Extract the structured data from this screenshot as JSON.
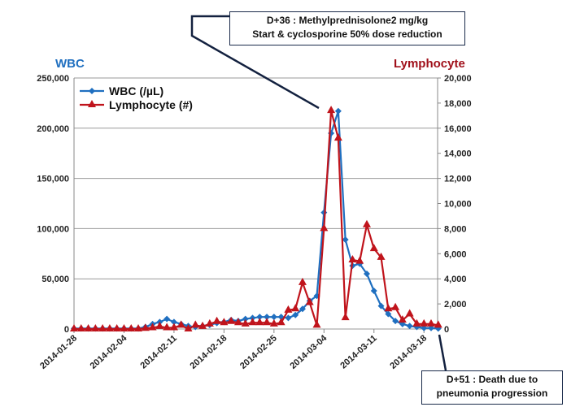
{
  "chart_data": {
    "type": "line",
    "title": "",
    "ylabel_left": "WBC",
    "ylabel_right": "Lymphocyte",
    "ylim_left": [
      0,
      250000
    ],
    "ylim_right": [
      0,
      20000
    ],
    "yticks_left": [
      "0",
      "50,000",
      "100,000",
      "150,000",
      "200,000",
      "250,000"
    ],
    "yticks_right": [
      "0",
      "2,000",
      "4,000",
      "6,000",
      "8,000",
      "10,000",
      "12,000",
      "14,000",
      "16,000",
      "18,000",
      "20,000"
    ],
    "xticks": [
      "2014-01-28",
      "2014-02-04",
      "2014-02-11",
      "2014-02-18",
      "2014-02-25",
      "2014-03-04",
      "2014-03-11",
      "2014-03-18"
    ],
    "x_days": "day offsets from 2014-01-28",
    "legend": "top-left",
    "series": [
      {
        "name": "WBC (/µL)",
        "axis": "left",
        "color": "#1f6fc0",
        "marker": "diamond",
        "values": [
          500,
          500,
          500,
          500,
          500,
          500,
          500,
          500,
          500,
          500,
          2000,
          5000,
          7000,
          10000,
          7000,
          5000,
          3000,
          2000,
          3000,
          4000,
          6000,
          7000,
          9000,
          8000,
          10000,
          11000,
          12000,
          12000,
          12000,
          12000,
          11000,
          14000,
          20000,
          28000,
          33000,
          116000,
          195000,
          217000,
          89000,
          63000,
          65000,
          55000,
          38000,
          23000,
          15000,
          8000,
          5000,
          3000,
          2000,
          1000,
          1000,
          500
        ]
      },
      {
        "name": "Lymphocyte (#)",
        "axis": "right",
        "color": "#c0141c",
        "marker": "triangle",
        "values": [
          0,
          0,
          0,
          0,
          0,
          0,
          0,
          0,
          0,
          0,
          50,
          100,
          200,
          100,
          100,
          300,
          0,
          300,
          200,
          400,
          600,
          500,
          600,
          500,
          400,
          500,
          500,
          500,
          400,
          500,
          1500,
          1600,
          3700,
          2100,
          300,
          8000,
          17400,
          15200,
          900,
          5500,
          5400,
          8300,
          6400,
          5700,
          1600,
          1700,
          700,
          1200,
          400,
          400,
          400,
          300
        ]
      }
    ],
    "annotations": [
      {
        "line1": "D+36 : Methylprednisolone2 mg/kg",
        "line2": "Start &  cyclosporine 50% dose reduction"
      },
      {
        "line1": "D+51 : Death due to",
        "line2": "pneumonia progression"
      }
    ]
  }
}
